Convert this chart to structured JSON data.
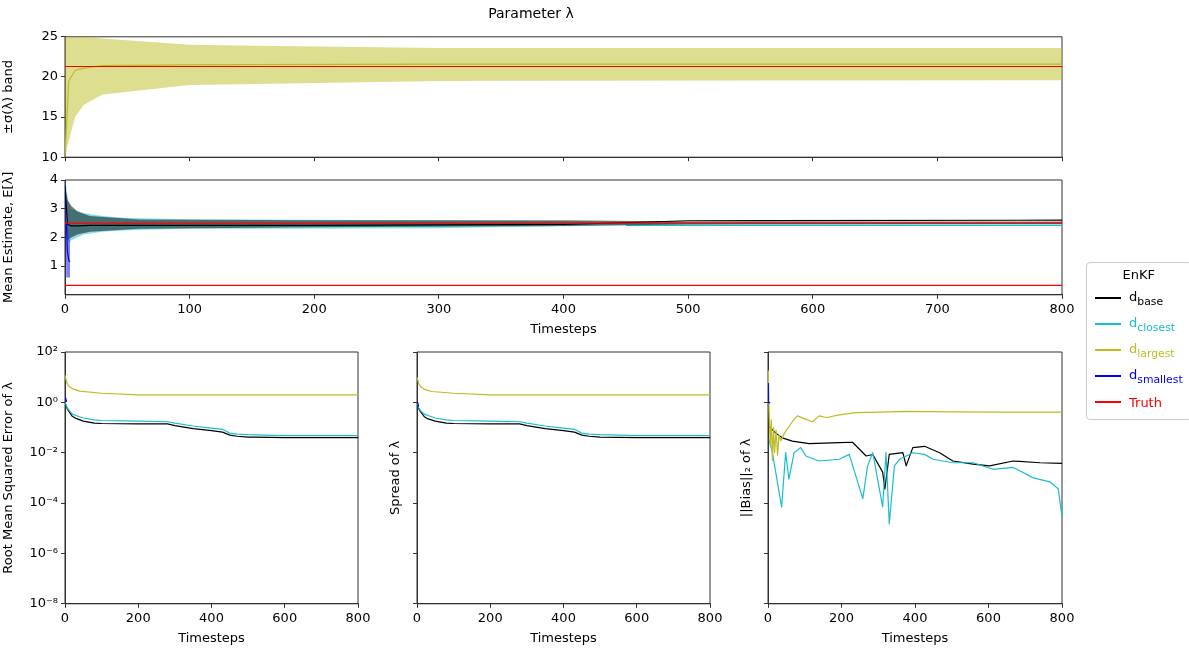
{
  "chart_data": [
    {
      "type": "line",
      "title": "Parameter λ",
      "ylabel": "±σ(λ) band",
      "xlim": [
        0,
        800
      ],
      "xticks": [
        0,
        100,
        200,
        300,
        400,
        500,
        600,
        700,
        800
      ],
      "ylim": [
        10,
        25
      ],
      "yticks": [
        10,
        15,
        20,
        25
      ],
      "tick_labels": "y",
      "series": [
        {
          "color": "#bcbd22",
          "x": [
            0,
            3,
            8,
            15,
            30,
            100,
            300,
            800
          ],
          "values": [
            10,
            19.5,
            20.8,
            21.1,
            21.4,
            21.5,
            21.6,
            21.6
          ],
          "lower": [
            10,
            12,
            15,
            16.5,
            17.8,
            19,
            19.5,
            19.6
          ],
          "upper": [
            25,
            25,
            25,
            25,
            24.8,
            24,
            23.6,
            23.6
          ]
        },
        {
          "color": "#ff0000",
          "x": [
            0,
            800
          ],
          "values": [
            21.3,
            21.3
          ]
        }
      ]
    },
    {
      "type": "line",
      "xlabel": "Timesteps",
      "ylabel": "Mean Estimate, E[λ]",
      "xlim": [
        0,
        800
      ],
      "xticks": [
        0,
        100,
        200,
        300,
        400,
        500,
        600,
        700,
        800
      ],
      "ylim": [
        0,
        4
      ],
      "yticks": [
        1,
        2,
        3,
        4
      ],
      "ref_lines": [
        {
          "axis": "y",
          "value": 2.5,
          "color": "#ff0000"
        }
      ],
      "series": [
        {
          "color": "#17becf",
          "x": [
            0,
            3,
            5,
            15,
            30,
            50,
            100,
            300,
            450,
            500,
            800
          ],
          "values": [
            null,
            null,
            null,
            null,
            null,
            null,
            null,
            null,
            2.42,
            2.42,
            2.42
          ],
          "lower": [
            4,
            1.8,
            1.9,
            2.1,
            2.2,
            2.25,
            2.3,
            2.32,
            2.42,
            2.45,
            2.45
          ],
          "upper": [
            4,
            3.2,
            3,
            2.85,
            2.75,
            2.68,
            2.63,
            2.6,
            2.55,
            2.52,
            2.52
          ]
        },
        {
          "color": "#000000",
          "x": [
            0,
            2,
            5,
            10,
            20,
            60,
            200,
            400,
            500,
            800
          ],
          "values": [
            3.8,
            2.45,
            2.4,
            2.4,
            2.42,
            2.42,
            2.42,
            2.45,
            2.58,
            2.6
          ],
          "lower": [
            3.8,
            1.9,
            2,
            2.1,
            2.2,
            2.3,
            2.35,
            2.4,
            2.45,
            2.47
          ],
          "upper": [
            3.8,
            3.3,
            3.1,
            2.9,
            2.75,
            2.62,
            2.6,
            2.6,
            2.55,
            2.55
          ]
        },
        {
          "color": "#0000ff",
          "x": [
            0,
            1,
            2,
            3,
            4
          ],
          "values": [
            null,
            2.5,
            1.5,
            1.2,
            1.15
          ],
          "lower": [
            4,
            0.6,
            0.6,
            0.6,
            0.6
          ],
          "upper": [
            4,
            3,
            2.5,
            2,
            1.9
          ]
        },
        {
          "name": "Truth",
          "color": "#ff0000",
          "x": [
            0,
            800
          ],
          "values": [
            0.33,
            0.33
          ]
        }
      ]
    },
    {
      "type": "line",
      "xlabel": "Timesteps",
      "ylabel": "Root Mean Squared Error of λ",
      "log": "y",
      "xlim": [
        0,
        800
      ],
      "xticks": [
        0,
        200,
        400,
        600,
        800
      ],
      "ylim": [
        1e-08,
        100
      ],
      "yticks": [
        {
          "value": 1e-08,
          "label": "10⁻⁸"
        },
        {
          "value": 1e-06,
          "label": "10⁻⁶"
        },
        {
          "value": 0.0001,
          "label": "10⁻⁴"
        },
        {
          "value": 0.01,
          "label": "10⁻²"
        },
        {
          "value": 1,
          "label": "10⁰"
        },
        {
          "value": 100,
          "label": "10²"
        }
      ],
      "series": [
        {
          "color": "#bcbd22",
          "x": [
            0,
            5,
            10,
            20,
            40,
            100,
            200,
            400,
            800
          ],
          "values": [
            12,
            6,
            4.5,
            3.5,
            2.8,
            2.3,
            2,
            2,
            2
          ]
        },
        {
          "color": "#000000",
          "x": [
            0,
            5,
            10,
            20,
            30,
            50,
            80,
            100,
            200,
            280,
            300,
            350,
            400,
            430,
            450,
            470,
            500,
            600,
            700,
            800
          ],
          "values": [
            1,
            0.6,
            0.45,
            0.28,
            0.23,
            0.18,
            0.15,
            0.145,
            0.14,
            0.14,
            0.12,
            0.09,
            0.075,
            0.066,
            0.05,
            0.045,
            0.042,
            0.04,
            0.04,
            0.04
          ]
        },
        {
          "color": "#17becf",
          "x": [
            0,
            5,
            10,
            20,
            30,
            50,
            80,
            100,
            200,
            280,
            300,
            350,
            400,
            430,
            450,
            470,
            500,
            600,
            700,
            800
          ],
          "values": [
            1,
            0.65,
            0.5,
            0.34,
            0.3,
            0.24,
            0.2,
            0.19,
            0.18,
            0.17,
            0.15,
            0.115,
            0.095,
            0.085,
            0.06,
            0.055,
            0.052,
            0.048,
            0.048,
            0.048
          ]
        },
        {
          "color": "#0000ff",
          "x": [
            2,
            3,
            4
          ],
          "values": [
            1.5,
            1.2,
            1.1
          ]
        }
      ]
    },
    {
      "type": "line",
      "xlabel": "Timesteps",
      "ylabel": "Spread of λ",
      "log": "y",
      "xlim": [
        0,
        800
      ],
      "xticks": [
        0,
        200,
        400,
        600,
        800
      ],
      "ylim": [
        1e-08,
        100
      ],
      "yticks": [
        1e-08,
        1e-06,
        0.0001,
        0.01,
        1,
        100
      ],
      "tick_labels": "x",
      "series": [
        {
          "color": "#bcbd22",
          "x": [
            0,
            5,
            10,
            20,
            40,
            100,
            200,
            400,
            800
          ],
          "values": [
            10,
            5.5,
            4.2,
            3.3,
            2.7,
            2.3,
            2,
            2,
            2
          ]
        },
        {
          "color": "#000000",
          "x": [
            0,
            5,
            10,
            20,
            30,
            50,
            80,
            100,
            200,
            280,
            300,
            350,
            400,
            430,
            450,
            470,
            500,
            600,
            700,
            800
          ],
          "values": [
            0.9,
            0.55,
            0.42,
            0.27,
            0.22,
            0.18,
            0.15,
            0.145,
            0.14,
            0.14,
            0.12,
            0.09,
            0.075,
            0.066,
            0.05,
            0.045,
            0.042,
            0.04,
            0.04,
            0.04
          ]
        },
        {
          "color": "#17becf",
          "x": [
            0,
            5,
            10,
            20,
            30,
            50,
            80,
            100,
            200,
            280,
            300,
            350,
            400,
            430,
            450,
            470,
            500,
            600,
            700,
            800
          ],
          "values": [
            0.9,
            0.6,
            0.46,
            0.34,
            0.3,
            0.24,
            0.2,
            0.19,
            0.18,
            0.17,
            0.15,
            0.115,
            0.095,
            0.085,
            0.06,
            0.055,
            0.052,
            0.048,
            0.048,
            0.048
          ]
        },
        {
          "color": "#0000ff",
          "x": [
            2,
            3,
            4
          ],
          "values": [
            1,
            0.8,
            0.7
          ]
        }
      ]
    },
    {
      "type": "line",
      "xlabel": "Timesteps",
      "ylabel": "||Bias||₂ of λ",
      "log": "y",
      "xlim": [
        0,
        800
      ],
      "xticks": [
        0,
        200,
        400,
        600,
        800
      ],
      "ylim": [
        1e-08,
        100
      ],
      "yticks": [
        1e-08,
        1e-06,
        0.0001,
        0.01,
        1,
        100
      ],
      "tick_labels": "x",
      "legend": "right",
      "legend_title": "EnKF",
      "series": [
        {
          "name": "d$_{base}$",
          "color": "#000000",
          "x": [
            3,
            21,
            39,
            66,
            112,
            194,
            230,
            267,
            285,
            312,
            318,
            330,
            367,
            376,
            394,
            426,
            467,
            503,
            558,
            603,
            667,
            740,
            800
          ],
          "values": [
            0.11,
            0.06,
            0.039,
            0.029,
            0.023,
            0.025,
            0.026,
            0.0074,
            0.0085,
            0.0017,
            0.00036,
            0.0086,
            0.01,
            0.003,
            0.016,
            0.018,
            0.01,
            0.0047,
            0.0035,
            0.003,
            0.0047,
            0.004,
            0.0038
          ]
        },
        {
          "name": "d$_{closest}$",
          "color": "#17becf",
          "x": [
            3,
            12,
            37,
            48,
            57,
            71,
            89,
            103,
            139,
            194,
            221,
            258,
            271,
            285,
            312,
            321,
            330,
            344,
            358,
            394,
            426,
            449,
            503,
            558,
            612,
            667,
            722,
            767,
            790,
            800
          ],
          "values": [
            0.033,
            0.01,
            7e-05,
            0.01,
            0.0009,
            0.01,
            0.016,
            0.0074,
            0.0047,
            0.0055,
            0.0086,
            0.00015,
            0.003,
            0.01,
            7e-05,
            0.01,
            1.5e-05,
            0.003,
            0.0055,
            0.01,
            0.0086,
            0.0055,
            0.004,
            0.004,
            0.0022,
            0.0026,
            0.001,
            0.0007,
            0.00036,
            2.8e-05
          ]
        },
        {
          "name": "d$_{largest}$",
          "color": "#bcbd22",
          "x": [
            1,
            3,
            6,
            9,
            12,
            15,
            18,
            22,
            26,
            30,
            35,
            45,
            57,
            70,
            80,
            100,
            121,
            139,
            160,
            194,
            239,
            300,
            376,
            500,
            650,
            800
          ],
          "values": [
            18.5,
            0.5,
            0.02,
            0.2,
            0.005,
            0.1,
            0.01,
            0.08,
            0.008,
            0.05,
            0.03,
            0.06,
            0.11,
            0.2,
            0.29,
            0.22,
            0.17,
            0.29,
            0.25,
            0.32,
            0.39,
            0.41,
            0.44,
            0.42,
            0.41,
            0.41
          ]
        },
        {
          "name": "d$_{smallest}$",
          "color": "#0000ff",
          "x": [
            0,
            1,
            6
          ],
          "values": [
            5.6,
            1,
            0.95
          ]
        }
      ]
    }
  ]
}
